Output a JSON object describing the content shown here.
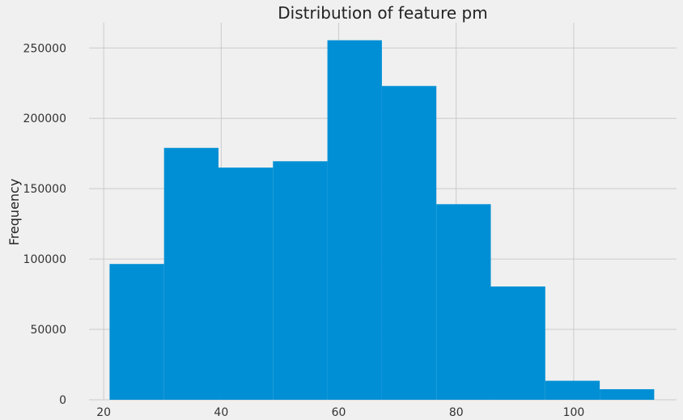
{
  "chart_data": {
    "type": "bar",
    "title": "Distribution of feature pm",
    "xlabel": "",
    "ylabel": "Frequency",
    "bin_edges": [
      21.0,
      30.27,
      39.54,
      48.81,
      58.08,
      67.35,
      76.62,
      85.89,
      95.16,
      104.43,
      113.7
    ],
    "values": [
      96500,
      179000,
      165000,
      169500,
      255500,
      223000,
      139000,
      80500,
      13500,
      7500
    ],
    "xlim": [
      17.5,
      117.5
    ],
    "ylim": [
      0,
      268000
    ],
    "x_ticks": [
      20,
      40,
      60,
      80,
      100
    ],
    "y_ticks": [
      0,
      50000,
      100000,
      150000,
      200000,
      250000
    ],
    "grid": true,
    "colors": {
      "bar": "#008fd5",
      "background": "#f0f0f0",
      "grid": "#cbcbcb"
    }
  }
}
